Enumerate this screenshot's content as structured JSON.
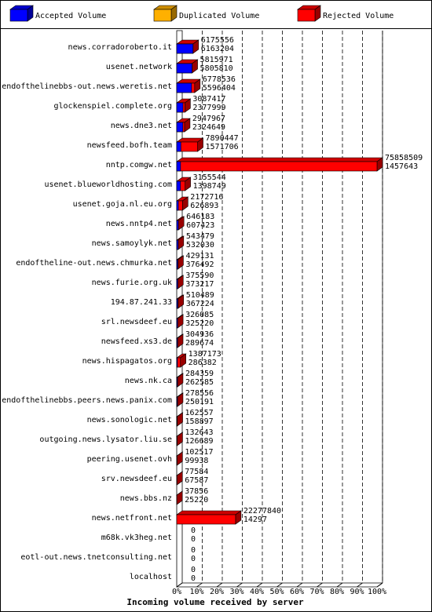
{
  "chart_data": {
    "type": "bar",
    "orientation": "horizontal",
    "stacking": "overlay-3d",
    "xlabel": "Incoming volume received by server",
    "x_tick_labels": [
      "0%",
      "10%",
      "20%",
      "30%",
      "40%",
      "50%",
      "60%",
      "70%",
      "80%",
      "90%",
      "100%"
    ],
    "xlim": [
      0,
      100
    ],
    "scale_max": 75858509,
    "grid": true,
    "legend_position": "top",
    "series": [
      {
        "name": "Accepted Volume",
        "color": "#0000ff"
      },
      {
        "name": "Duplicated Volume",
        "color": "#ffb000"
      },
      {
        "name": "Rejected Volume",
        "color": "#ff0000"
      }
    ],
    "categories": [
      "news.corradoroberto.it",
      "usenet.network",
      "endofthelinebbs-out.news.weretis.net",
      "glockenspiel.complete.org",
      "news.dne3.net",
      "newsfeed.bofh.team",
      "nntp.comgw.net",
      "usenet.blueworldhosting.com",
      "usenet.goja.nl.eu.org",
      "news.nntp4.net",
      "news.samoylyk.net",
      "endoftheline-out.news.chmurka.net",
      "news.furie.org.uk",
      "194.87.241.33",
      "srl.newsdeef.eu",
      "newsfeed.xs3.de",
      "news.hispagatos.org",
      "news.nk.ca",
      "endofthelinebbs.peers.news.panix.com",
      "news.sonologic.net",
      "outgoing.news.lysator.liu.se",
      "peering.usenet.ovh",
      "srv.newsdeef.eu",
      "news.bbs.nz",
      "news.netfront.net",
      "m68k.vk3heg.net",
      "eotl-out.news.tnetconsulting.net",
      "localhost"
    ],
    "total_values": [
      "6175556",
      "5815971",
      "6778536",
      "3087417",
      "2947967",
      "7890447",
      "75858509",
      "3155544",
      "2172716",
      "646183",
      "543479",
      "429131",
      "375590",
      "510489",
      "326085",
      "304936",
      "1387173",
      "284359",
      "278556",
      "162557",
      "132643",
      "102517",
      "77584",
      "37856",
      "22277840",
      "0",
      "0",
      "0"
    ],
    "accepted_values": [
      "6163204",
      "5805810",
      "5596404",
      "2377999",
      "2324649",
      "1571706",
      "1457643",
      "1398749",
      "626893",
      "607423",
      "532030",
      "376492",
      "373217",
      "367224",
      "325220",
      "289674",
      "286382",
      "262585",
      "250191",
      "158897",
      "126689",
      "99938",
      "67587",
      "25220",
      "14297",
      "0",
      "0",
      "0"
    ],
    "duplicated_values": [
      0,
      0,
      0,
      0,
      0,
      0,
      0,
      0,
      0,
      0,
      0,
      0,
      0,
      0,
      0,
      0,
      0,
      0,
      0,
      0,
      0,
      0,
      0,
      0,
      0,
      0,
      0,
      0
    ]
  }
}
